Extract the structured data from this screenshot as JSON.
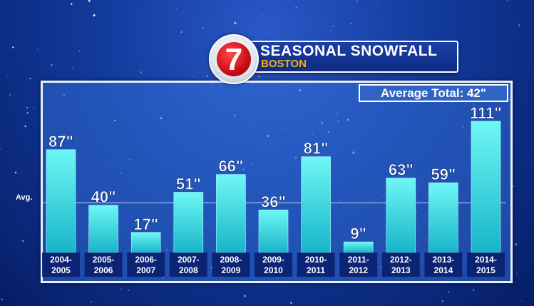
{
  "title": {
    "logo_text": "7",
    "main": "SEASONAL SNOWFALL",
    "sub": "BOSTON"
  },
  "average_label": "Average Total: 42\"",
  "avg_line_label": "Avg.",
  "colors": {
    "bar_top": "#6ff7f5",
    "bar_bottom": "#17b5c9",
    "axis_label_bg": "#0a1f6e",
    "average_line": "#d6e6ff"
  },
  "chart_data": {
    "type": "bar",
    "title": "SEASONAL SNOWFALL",
    "subtitle": "BOSTON",
    "categories": [
      "2004-2005",
      "2005-2006",
      "2006-2007",
      "2007-2008",
      "2008-2009",
      "2009-2010",
      "2010-2011",
      "2011-2012",
      "2012-2013",
      "2013-2014",
      "2014-2015"
    ],
    "category_lines": [
      [
        "2004-",
        "2005"
      ],
      [
        "2005-",
        "2006"
      ],
      [
        "2006-",
        "2007"
      ],
      [
        "2007-",
        "2008"
      ],
      [
        "2008-",
        "2009"
      ],
      [
        "2009-",
        "2010"
      ],
      [
        "2010-",
        "2011"
      ],
      [
        "2011-",
        "2012"
      ],
      [
        "2012-",
        "2013"
      ],
      [
        "2013-",
        "2014"
      ],
      [
        "2014-",
        "2015"
      ]
    ],
    "values": [
      87,
      40,
      17,
      51,
      66,
      36,
      81,
      9,
      63,
      59,
      111
    ],
    "value_labels": [
      "87\"",
      "40\"",
      "17\"",
      "51\"",
      "66\"",
      "36\"",
      "81\"",
      "9\"",
      "63\"",
      "59\"",
      "111\""
    ],
    "unit": "inches",
    "average": 42,
    "ylim": [
      0,
      111
    ],
    "grid": false,
    "xlabel": "",
    "ylabel": ""
  }
}
